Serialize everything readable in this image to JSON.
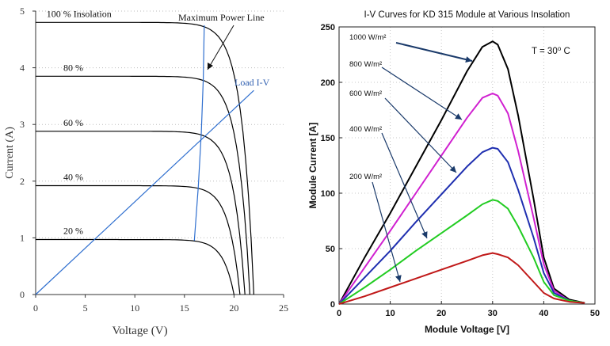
{
  "chart_data": [
    {
      "type": "line",
      "title": "",
      "xlabel": "Voltage (V)",
      "ylabel": "Current (A)",
      "xlim": [
        0,
        25
      ],
      "ylim": [
        0,
        5
      ],
      "xticks": [
        "0",
        "5",
        "10",
        "15",
        "20",
        "25"
      ],
      "yticks": [
        "0",
        "1",
        "2",
        "3",
        "4",
        "5"
      ],
      "grid": "horizontal dotted",
      "series": [
        {
          "name": "100 % Insolation",
          "isc": 4.8,
          "voc": 22.0,
          "label": "100 % Insolation"
        },
        {
          "name": "80 %",
          "isc": 3.85,
          "voc": 21.6,
          "label": "80 %"
        },
        {
          "name": "60 %",
          "isc": 2.88,
          "voc": 21.1,
          "label": "60 %"
        },
        {
          "name": "40 %",
          "isc": 1.92,
          "voc": 20.6,
          "label": "40 %"
        },
        {
          "name": "20 %",
          "isc": 0.97,
          "voc": 20.0,
          "label": "20 %"
        }
      ],
      "annotations": {
        "max_power_line": "Maximum Power Line",
        "load_line": "Load I-V"
      },
      "max_power_line_points": [
        [
          16.0,
          0.95
        ],
        [
          16.4,
          1.9
        ],
        [
          16.7,
          2.85
        ],
        [
          16.9,
          3.8
        ],
        [
          17.0,
          4.75
        ]
      ],
      "load_line_points": [
        [
          0,
          0
        ],
        [
          22,
          3.6
        ]
      ],
      "colors": {
        "curves": "#000000",
        "load": "#2f6fcf",
        "grid": "#bbbbbb",
        "axis": "#333333"
      }
    },
    {
      "type": "line",
      "title": "I-V Curves for KD 315 Module at Various Insolation",
      "xlabel": "Module Voltage [V]",
      "ylabel": "Module Current [A]",
      "xlim": [
        0,
        50
      ],
      "ylim": [
        0,
        250
      ],
      "xticks": [
        "0",
        "10",
        "20",
        "30",
        "40",
        "50"
      ],
      "yticks": [
        "0",
        "50",
        "100",
        "150",
        "200",
        "250"
      ],
      "grid": "dotted",
      "annotation": "T = 30⁰ C",
      "series": [
        {
          "name": "1000 W/m²",
          "color": "#000000",
          "peak": 237,
          "x": [
            0,
            5,
            10,
            15,
            20,
            25,
            28,
            30,
            31,
            33,
            35,
            38,
            40,
            42,
            45,
            48
          ],
          "y": [
            0,
            42,
            82,
            124,
            166,
            210,
            232,
            237,
            234,
            212,
            170,
            95,
            42,
            14,
            4,
            1
          ]
        },
        {
          "name": "800 W/m²",
          "color": "#d020d0",
          "peak": 190,
          "x": [
            0,
            5,
            10,
            15,
            20,
            25,
            28,
            30,
            31,
            33,
            35,
            38,
            40,
            42,
            45,
            48
          ],
          "y": [
            0,
            33,
            66,
            100,
            134,
            168,
            186,
            190,
            188,
            172,
            138,
            78,
            36,
            12,
            3,
            1
          ]
        },
        {
          "name": "600 W/m²",
          "color": "#1f2fb0",
          "peak": 141,
          "x": [
            0,
            5,
            10,
            15,
            20,
            25,
            28,
            30,
            31,
            33,
            35,
            38,
            40,
            42,
            45,
            48
          ],
          "y": [
            0,
            24,
            48,
            74,
            99,
            124,
            137,
            141,
            140,
            128,
            103,
            60,
            28,
            10,
            3,
            1
          ]
        },
        {
          "name": "400 W/m²",
          "color": "#22cc22",
          "peak": 94,
          "x": [
            0,
            5,
            10,
            15,
            20,
            25,
            28,
            30,
            31,
            33,
            35,
            38,
            40,
            42,
            45,
            48
          ],
          "y": [
            0,
            15,
            31,
            48,
            64,
            80,
            90,
            94,
            93,
            86,
            70,
            42,
            20,
            8,
            3,
            1
          ]
        },
        {
          "name": "200 W/m²",
          "color": "#c01818",
          "peak": 46,
          "x": [
            0,
            5,
            10,
            15,
            20,
            25,
            28,
            30,
            31,
            33,
            35,
            38,
            40,
            42,
            45,
            48
          ],
          "y": [
            0,
            7,
            15,
            23,
            31,
            39,
            44,
            46,
            45,
            42,
            35,
            20,
            10,
            5,
            2,
            1
          ]
        }
      ]
    }
  ]
}
